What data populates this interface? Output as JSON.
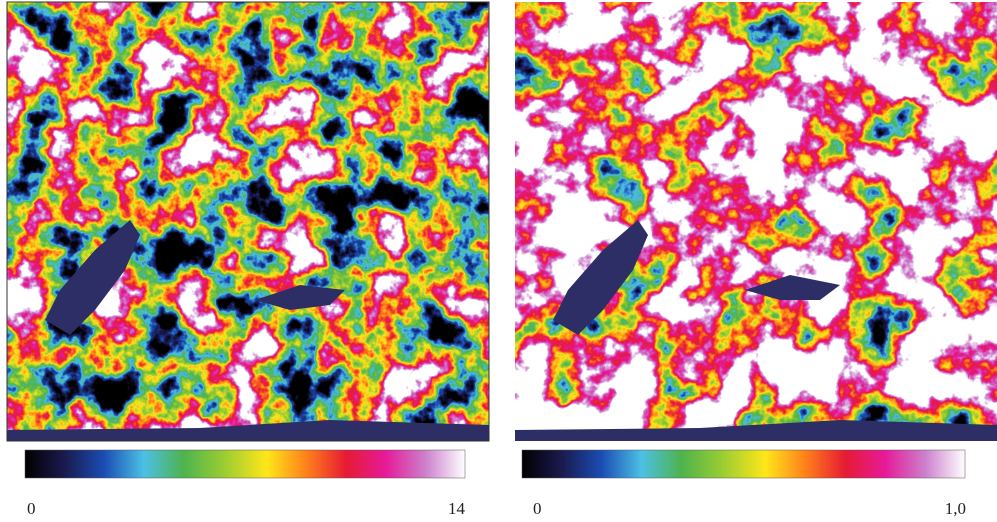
{
  "panels": [
    {
      "min_label": "0",
      "max_label": "14"
    },
    {
      "min_label": "0",
      "max_label": "1,0"
    }
  ]
}
